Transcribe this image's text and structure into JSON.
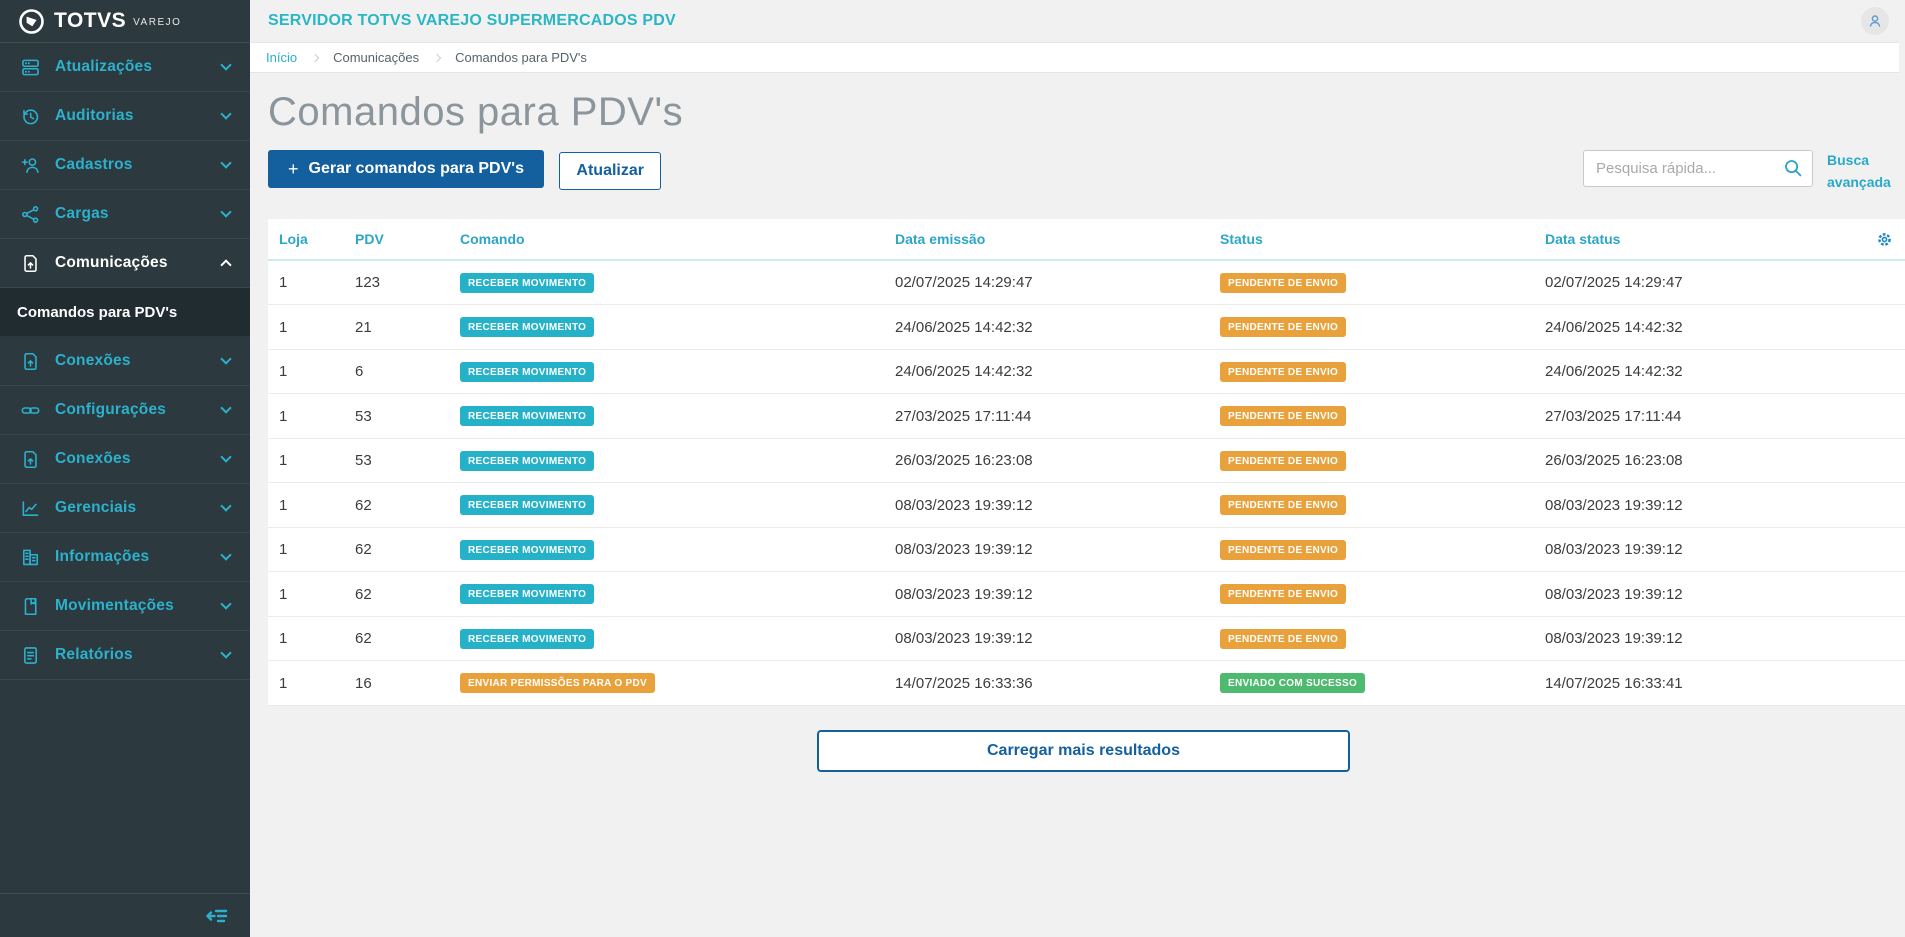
{
  "colors": {
    "accent_teal": "#29b6c5",
    "primary_blue": "#14609f",
    "sidebar_bg": "#2c393e",
    "sidebar_submenu_bg": "#212c31",
    "badge_teal": "#25b2c9",
    "badge_orange": "#e9a23b",
    "badge_green": "#4eba6f",
    "page_bg": "#f1f1f1"
  },
  "sidebar": {
    "logo": {
      "brand": "TOTVS",
      "product": "VAREJO",
      "icon": "totvs-logo-icon"
    },
    "items": [
      {
        "label": "Atualizações",
        "icon": "server-icon",
        "state": "collapsed",
        "active": false
      },
      {
        "label": "Auditorias",
        "icon": "history-icon",
        "state": "collapsed",
        "active": false
      },
      {
        "label": "Cadastros",
        "icon": "user-plus-icon",
        "state": "collapsed",
        "active": false
      },
      {
        "label": "Cargas",
        "icon": "share-icon",
        "state": "collapsed",
        "active": false
      },
      {
        "label": "Comunicações",
        "icon": "file-up-icon",
        "state": "expanded",
        "active": true,
        "submenu": [
          {
            "label": "Comandos para PDV's",
            "active": true
          }
        ]
      },
      {
        "label": "Conexões",
        "icon": "file-up-icon",
        "state": "collapsed",
        "active": false
      },
      {
        "label": "Configurações",
        "icon": "link-icon",
        "state": "collapsed",
        "active": false
      },
      {
        "label": "Conexões",
        "icon": "file-up-icon",
        "state": "collapsed",
        "active": false
      },
      {
        "label": "Gerenciais",
        "icon": "chart-icon",
        "state": "collapsed",
        "active": false
      },
      {
        "label": "Informações",
        "icon": "building-icon",
        "state": "collapsed",
        "active": false
      },
      {
        "label": "Movimentações",
        "icon": "book-icon",
        "state": "collapsed",
        "active": false
      },
      {
        "label": "Relatórios",
        "icon": "report-icon",
        "state": "collapsed",
        "active": false
      }
    ],
    "collapse_icon": "collapse-menu-icon"
  },
  "header": {
    "title": "SERVIDOR TOTVS VAREJO SUPERMERCADOS PDV",
    "avatar_icon": "user-icon"
  },
  "breadcrumb": {
    "items": [
      {
        "label": "Início"
      },
      {
        "label": "Comunicações"
      },
      {
        "label": "Comandos para PDV's"
      }
    ]
  },
  "page": {
    "title": "Comandos para PDV's"
  },
  "toolbar": {
    "generate_plus": "+",
    "generate_label": "Gerar comandos para PDV's",
    "refresh_label": "Atualizar",
    "search_placeholder": "Pesquisa rápida...",
    "advanced_search": "Busca avançada"
  },
  "table": {
    "columns": [
      "Loja",
      "PDV",
      "Comando",
      "Data emissão",
      "Status",
      "Data status"
    ],
    "settings_icon": "gear-icon",
    "rows": [
      {
        "loja": "1",
        "pdv": "123",
        "comando": {
          "label": "RECEBER MOVIMENTO",
          "variant": "teal"
        },
        "data_emissao": "02/07/2025 14:29:47",
        "status": {
          "label": "PENDENTE DE ENVIO",
          "variant": "orange"
        },
        "data_status": "02/07/2025 14:29:47"
      },
      {
        "loja": "1",
        "pdv": "21",
        "comando": {
          "label": "RECEBER MOVIMENTO",
          "variant": "teal"
        },
        "data_emissao": "24/06/2025 14:42:32",
        "status": {
          "label": "PENDENTE DE ENVIO",
          "variant": "orange"
        },
        "data_status": "24/06/2025 14:42:32"
      },
      {
        "loja": "1",
        "pdv": "6",
        "comando": {
          "label": "RECEBER MOVIMENTO",
          "variant": "teal"
        },
        "data_emissao": "24/06/2025 14:42:32",
        "status": {
          "label": "PENDENTE DE ENVIO",
          "variant": "orange"
        },
        "data_status": "24/06/2025 14:42:32"
      },
      {
        "loja": "1",
        "pdv": "53",
        "comando": {
          "label": "RECEBER MOVIMENTO",
          "variant": "teal"
        },
        "data_emissao": "27/03/2025 17:11:44",
        "status": {
          "label": "PENDENTE DE ENVIO",
          "variant": "orange"
        },
        "data_status": "27/03/2025 17:11:44"
      },
      {
        "loja": "1",
        "pdv": "53",
        "comando": {
          "label": "RECEBER MOVIMENTO",
          "variant": "teal"
        },
        "data_emissao": "26/03/2025 16:23:08",
        "status": {
          "label": "PENDENTE DE ENVIO",
          "variant": "orange"
        },
        "data_status": "26/03/2025 16:23:08"
      },
      {
        "loja": "1",
        "pdv": "62",
        "comando": {
          "label": "RECEBER MOVIMENTO",
          "variant": "teal"
        },
        "data_emissao": "08/03/2023 19:39:12",
        "status": {
          "label": "PENDENTE DE ENVIO",
          "variant": "orange"
        },
        "data_status": "08/03/2023 19:39:12"
      },
      {
        "loja": "1",
        "pdv": "62",
        "comando": {
          "label": "RECEBER MOVIMENTO",
          "variant": "teal"
        },
        "data_emissao": "08/03/2023 19:39:12",
        "status": {
          "label": "PENDENTE DE ENVIO",
          "variant": "orange"
        },
        "data_status": "08/03/2023 19:39:12"
      },
      {
        "loja": "1",
        "pdv": "62",
        "comando": {
          "label": "RECEBER MOVIMENTO",
          "variant": "teal"
        },
        "data_emissao": "08/03/2023 19:39:12",
        "status": {
          "label": "PENDENTE DE ENVIO",
          "variant": "orange"
        },
        "data_status": "08/03/2023 19:39:12"
      },
      {
        "loja": "1",
        "pdv": "62",
        "comando": {
          "label": "RECEBER MOVIMENTO",
          "variant": "teal"
        },
        "data_emissao": "08/03/2023 19:39:12",
        "status": {
          "label": "PENDENTE DE ENVIO",
          "variant": "orange"
        },
        "data_status": "08/03/2023 19:39:12"
      },
      {
        "loja": "1",
        "pdv": "16",
        "comando": {
          "label": "ENVIAR PERMISSÕES PARA O PDV",
          "variant": "orange"
        },
        "data_emissao": "14/07/2025 16:33:36",
        "status": {
          "label": "ENVIADO COM SUCESSO",
          "variant": "green"
        },
        "data_status": "14/07/2025 16:33:41"
      }
    ]
  },
  "footer": {
    "load_more": "Carregar mais resultados"
  }
}
